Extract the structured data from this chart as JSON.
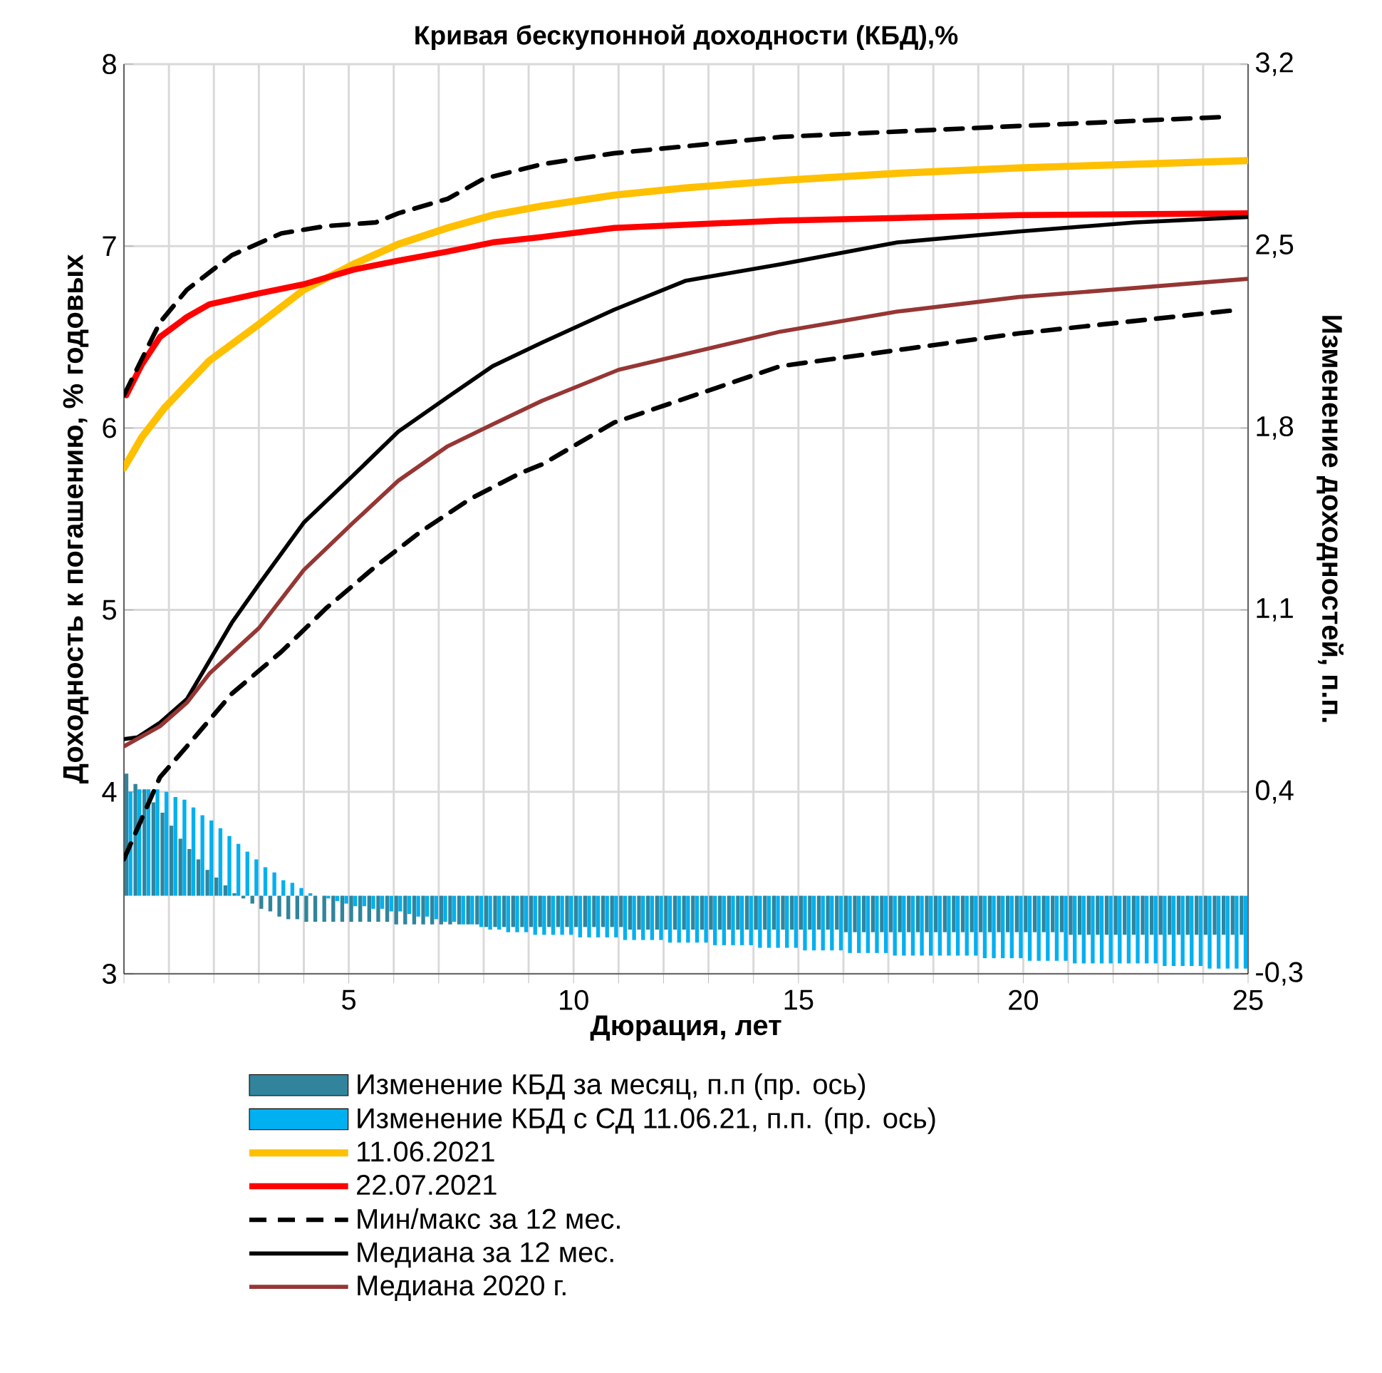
{
  "chart_data": {
    "type": "line",
    "title": "Кривая бескупонной доходности (КБД),%",
    "xlabel": "Дюрация, лет",
    "ylabel": "Доходность к погашению, % годовых",
    "y2label": "Изменение доходностей, п.п.",
    "xlim": [
      0,
      25
    ],
    "xticks": [
      {
        "value": 0,
        "label": null
      },
      {
        "value": 1,
        "label": null
      },
      {
        "value": 2,
        "label": null
      },
      {
        "value": 3,
        "label": null
      },
      {
        "value": 4,
        "label": null
      },
      5,
      {
        "value": 6,
        "label": null
      },
      {
        "value": 7,
        "label": null
      },
      {
        "value": 8,
        "label": null
      },
      {
        "value": 9,
        "label": null
      },
      10,
      {
        "value": 11,
        "label": null
      },
      {
        "value": 12,
        "label": null
      },
      {
        "value": 13,
        "label": null
      },
      {
        "value": 14,
        "label": null
      },
      15,
      {
        "value": 16,
        "label": null
      },
      {
        "value": 17,
        "label": null
      },
      {
        "value": 18,
        "label": null
      },
      {
        "value": 19,
        "label": null
      },
      20,
      {
        "value": 21,
        "label": null
      },
      {
        "value": 22,
        "label": null
      },
      {
        "value": 23,
        "label": null
      },
      {
        "value": 24,
        "label": null
      },
      25
    ],
    "ylim": [
      3,
      8
    ],
    "yticks": [
      3,
      4,
      5,
      6,
      7,
      8
    ],
    "y2lim": [
      -0.3,
      3.2
    ],
    "y2ticks": [
      {
        "value": -0.3,
        "label": "-0,3"
      },
      {
        "value": 0.4,
        "label": "0,4"
      },
      {
        "value": 1.1,
        "label": "1,1"
      },
      {
        "value": 1.8,
        "label": "1,8"
      },
      {
        "value": 2.5,
        "label": "2,5"
      },
      {
        "value": 3.2,
        "label": "3,2"
      }
    ],
    "grid": true,
    "legend": "bottom",
    "series": [
      {
        "name": "Изменение КБД за месяц, п.п (пр. ось)",
        "type": "bar",
        "axis": "y2",
        "color": "#31849b",
        "x": [
          0.1,
          0.3,
          0.5,
          0.7,
          0.9,
          1.1,
          1.3,
          1.5,
          1.7,
          1.9,
          2.1,
          2.3,
          2.5,
          2.7,
          2.9,
          3.1,
          3.3,
          3.5,
          3.7,
          3.9,
          4.1,
          4.3,
          4.5,
          4.7,
          4.9,
          5.1,
          5.3,
          5.5,
          5.7,
          5.9,
          6.1,
          6.3,
          6.5,
          6.7,
          6.9,
          7.1,
          7.3,
          7.5,
          7.7,
          7.9,
          8.1,
          8.3,
          8.5,
          8.7,
          8.9,
          9.1,
          9.3,
          9.5,
          9.7,
          9.9,
          10.1,
          10.3,
          10.5,
          10.7,
          10.9,
          11.1,
          11.3,
          11.5,
          11.7,
          11.9,
          12.1,
          12.3,
          12.5,
          12.7,
          12.9,
          13.1,
          13.3,
          13.5,
          13.7,
          13.9,
          14.1,
          14.3,
          14.5,
          14.7,
          14.9,
          15.1,
          15.3,
          15.5,
          15.7,
          15.9,
          16.1,
          16.3,
          16.5,
          16.7,
          16.9,
          17.1,
          17.3,
          17.5,
          17.7,
          17.9,
          18.1,
          18.3,
          18.5,
          18.7,
          18.9,
          19.1,
          19.3,
          19.5,
          19.7,
          19.9,
          20.1,
          20.3,
          20.5,
          20.7,
          20.9,
          21.1,
          21.3,
          21.5,
          21.7,
          21.9,
          22.1,
          22.3,
          22.5,
          22.7,
          22.9,
          23.1,
          23.3,
          23.5,
          23.7,
          23.9,
          24.1,
          24.3,
          24.5,
          24.7,
          24.9
        ],
        "values": [
          0.47,
          0.43,
          0.41,
          0.36,
          0.32,
          0.27,
          0.22,
          0.18,
          0.14,
          0.1,
          0.07,
          0.04,
          0.01,
          -0.01,
          -0.03,
          -0.05,
          -0.06,
          -0.08,
          -0.09,
          -0.09,
          -0.1,
          -0.1,
          -0.1,
          -0.1,
          -0.1,
          -0.1,
          -0.1,
          -0.1,
          -0.1,
          -0.1,
          -0.11,
          -0.11,
          -0.11,
          -0.11,
          -0.11,
          -0.11,
          -0.11,
          -0.11,
          -0.11,
          -0.11,
          -0.12,
          -0.12,
          -0.12,
          -0.12,
          -0.12,
          -0.12,
          -0.12,
          -0.12,
          -0.12,
          -0.12,
          -0.12,
          -0.12,
          -0.12,
          -0.12,
          -0.12,
          -0.12,
          -0.13,
          -0.13,
          -0.13,
          -0.13,
          -0.13,
          -0.13,
          -0.13,
          -0.13,
          -0.13,
          -0.13,
          -0.13,
          -0.13,
          -0.13,
          -0.13,
          -0.13,
          -0.13,
          -0.13,
          -0.13,
          -0.13,
          -0.13,
          -0.13,
          -0.13,
          -0.13,
          -0.13,
          -0.14,
          -0.14,
          -0.14,
          -0.14,
          -0.14,
          -0.14,
          -0.14,
          -0.14,
          -0.14,
          -0.14,
          -0.14,
          -0.14,
          -0.14,
          -0.14,
          -0.14,
          -0.14,
          -0.14,
          -0.14,
          -0.14,
          -0.14,
          -0.14,
          -0.14,
          -0.14,
          -0.14,
          -0.14,
          -0.15,
          -0.15,
          -0.15,
          -0.15,
          -0.15,
          -0.15,
          -0.15,
          -0.15,
          -0.15,
          -0.15,
          -0.15,
          -0.15,
          -0.15,
          -0.15,
          -0.15,
          -0.15,
          -0.15,
          -0.15,
          -0.15,
          -0.15
        ]
      },
      {
        "name": "Изменение КБД с СД 11.06.21, п.п. (пр. ось)",
        "type": "bar",
        "axis": "y2",
        "color": "#00b0f0",
        "x": [
          0.1,
          0.3,
          0.5,
          0.7,
          0.9,
          1.1,
          1.3,
          1.5,
          1.7,
          1.9,
          2.1,
          2.3,
          2.5,
          2.7,
          2.9,
          3.1,
          3.3,
          3.5,
          3.7,
          3.9,
          4.1,
          4.3,
          4.5,
          4.7,
          4.9,
          5.1,
          5.3,
          5.5,
          5.7,
          5.9,
          6.1,
          6.3,
          6.5,
          6.7,
          6.9,
          7.1,
          7.3,
          7.5,
          7.7,
          7.9,
          8.1,
          8.3,
          8.5,
          8.7,
          8.9,
          9.1,
          9.3,
          9.5,
          9.7,
          9.9,
          10.1,
          10.3,
          10.5,
          10.7,
          10.9,
          11.1,
          11.3,
          11.5,
          11.7,
          11.9,
          12.1,
          12.3,
          12.5,
          12.7,
          12.9,
          13.1,
          13.3,
          13.5,
          13.7,
          13.9,
          14.1,
          14.3,
          14.5,
          14.7,
          14.9,
          15.1,
          15.3,
          15.5,
          15.7,
          15.9,
          16.1,
          16.3,
          16.5,
          16.7,
          16.9,
          17.1,
          17.3,
          17.5,
          17.7,
          17.9,
          18.1,
          18.3,
          18.5,
          18.7,
          18.9,
          19.1,
          19.3,
          19.5,
          19.7,
          19.9,
          20.1,
          20.3,
          20.5,
          20.7,
          20.9,
          21.1,
          21.3,
          21.5,
          21.7,
          21.9,
          22.1,
          22.3,
          22.5,
          22.7,
          22.9,
          23.1,
          23.3,
          23.5,
          23.7,
          23.9,
          24.1,
          24.3,
          24.5,
          24.7,
          24.9
        ],
        "values": [
          0.4,
          0.41,
          0.41,
          0.41,
          0.4,
          0.38,
          0.37,
          0.34,
          0.31,
          0.29,
          0.26,
          0.23,
          0.2,
          0.17,
          0.14,
          0.11,
          0.09,
          0.06,
          0.05,
          0.03,
          0.01,
          0.0,
          -0.01,
          -0.02,
          -0.03,
          -0.04,
          -0.04,
          -0.05,
          -0.05,
          -0.06,
          -0.06,
          -0.07,
          -0.08,
          -0.08,
          -0.09,
          -0.1,
          -0.1,
          -0.11,
          -0.11,
          -0.12,
          -0.13,
          -0.13,
          -0.14,
          -0.14,
          -0.14,
          -0.15,
          -0.15,
          -0.15,
          -0.15,
          -0.15,
          -0.16,
          -0.16,
          -0.16,
          -0.16,
          -0.16,
          -0.17,
          -0.17,
          -0.17,
          -0.17,
          -0.17,
          -0.18,
          -0.18,
          -0.18,
          -0.18,
          -0.18,
          -0.19,
          -0.19,
          -0.19,
          -0.19,
          -0.19,
          -0.2,
          -0.2,
          -0.2,
          -0.2,
          -0.2,
          -0.21,
          -0.21,
          -0.21,
          -0.21,
          -0.21,
          -0.22,
          -0.22,
          -0.22,
          -0.22,
          -0.22,
          -0.23,
          -0.23,
          -0.23,
          -0.23,
          -0.23,
          -0.23,
          -0.23,
          -0.23,
          -0.23,
          -0.23,
          -0.24,
          -0.24,
          -0.24,
          -0.24,
          -0.24,
          -0.25,
          -0.25,
          -0.25,
          -0.25,
          -0.25,
          -0.26,
          -0.26,
          -0.26,
          -0.26,
          -0.26,
          -0.26,
          -0.26,
          -0.26,
          -0.26,
          -0.26,
          -0.27,
          -0.27,
          -0.27,
          -0.27,
          -0.27,
          -0.28,
          -0.28,
          -0.28,
          -0.28,
          -0.28
        ]
      },
      {
        "name": "11.06.2021",
        "color": "#ffc000",
        "x": [
          0,
          0.4,
          0.9,
          1.9,
          3.0,
          4.0,
          5.1,
          6.1,
          7.2,
          8.2,
          9.3,
          10.9,
          12.5,
          14.6,
          17.2,
          19.9,
          22.5,
          25
        ],
        "values": [
          5.78,
          5.95,
          6.11,
          6.37,
          6.57,
          6.76,
          6.9,
          7.01,
          7.1,
          7.17,
          7.22,
          7.28,
          7.32,
          7.36,
          7.4,
          7.43,
          7.45,
          7.47
        ]
      },
      {
        "name": "22.07.2021",
        "color": "#ff0000",
        "x": [
          0.05,
          0.4,
          0.8,
          1.4,
          1.9,
          3.0,
          4.0,
          5.1,
          6.1,
          7.2,
          8.2,
          9.3,
          10.9,
          14.6,
          19.9,
          25
        ],
        "values": [
          6.18,
          6.35,
          6.5,
          6.61,
          6.68,
          6.74,
          6.79,
          6.87,
          6.92,
          6.97,
          7.02,
          7.05,
          7.1,
          7.14,
          7.17,
          7.18
        ]
      },
      {
        "name": "Мин/макс за 12 мес.",
        "color": "#000000",
        "line_style": "dashed",
        "x": [
          0,
          0.8,
          1.4,
          2.4,
          3.5,
          4.5,
          5.6,
          6.1,
          7.2,
          8.0,
          9.3,
          10.9,
          14.6,
          19.9,
          24.5
        ],
        "values": [
          6.18,
          6.58,
          6.76,
          6.95,
          7.07,
          7.11,
          7.13,
          7.18,
          7.26,
          7.37,
          7.45,
          7.51,
          7.6,
          7.66,
          7.71
        ]
      },
      {
        "color": "#000000",
        "line_style": "dashed",
        "x": [
          0,
          0.8,
          1.4,
          2.4,
          3.5,
          4.5,
          5.6,
          6.6,
          7.7,
          8.8,
          9.3,
          10.9,
          14.6,
          19.9,
          24.8
        ],
        "values": [
          3.63,
          4.08,
          4.25,
          4.54,
          4.77,
          5.01,
          5.24,
          5.43,
          5.61,
          5.75,
          5.8,
          6.03,
          6.34,
          6.52,
          6.65
        ]
      },
      {
        "name": "Медиана за 12 мес.",
        "color": "#000000",
        "x": [
          0,
          0.3,
          0.8,
          1.4,
          1.9,
          2.4,
          3.0,
          4.0,
          5.1,
          6.1,
          7.2,
          8.2,
          9.3,
          10.9,
          12.5,
          14.6,
          17.2,
          19.9,
          22.5,
          25
        ],
        "values": [
          4.29,
          4.3,
          4.38,
          4.51,
          4.72,
          4.93,
          5.14,
          5.48,
          5.74,
          5.98,
          6.17,
          6.34,
          6.47,
          6.65,
          6.81,
          6.9,
          7.02,
          7.08,
          7.13,
          7.16
        ]
      },
      {
        "name": "Медиана 2020 г.",
        "color": "#963634",
        "x": [
          0,
          0.8,
          1.4,
          1.9,
          3.0,
          4.0,
          5.1,
          6.1,
          7.2,
          8.2,
          9.3,
          11.0,
          14.6,
          17.2,
          19.9,
          22.5,
          25
        ],
        "values": [
          4.25,
          4.36,
          4.49,
          4.65,
          4.9,
          5.22,
          5.48,
          5.71,
          5.9,
          6.02,
          6.15,
          6.32,
          6.53,
          6.64,
          6.72,
          6.77,
          6.82
        ]
      }
    ]
  }
}
